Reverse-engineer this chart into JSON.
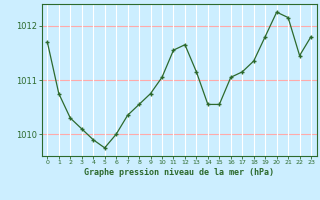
{
  "x": [
    0,
    1,
    2,
    3,
    4,
    5,
    6,
    7,
    8,
    9,
    10,
    11,
    12,
    13,
    14,
    15,
    16,
    17,
    18,
    19,
    20,
    21,
    22,
    23
  ],
  "y": [
    1011.7,
    1010.75,
    1010.3,
    1010.1,
    1009.9,
    1009.75,
    1010.0,
    1010.35,
    1010.55,
    1010.75,
    1011.05,
    1011.55,
    1011.65,
    1011.15,
    1010.55,
    1010.55,
    1011.05,
    1011.15,
    1011.35,
    1011.8,
    1012.25,
    1012.15,
    1011.45,
    1011.8
  ],
  "line_color": "#2d6a2d",
  "marker": "+",
  "marker_size": 3,
  "background_color": "#cceeff",
  "grid_color_h": "#ffaaaa",
  "grid_color_v": "#ffffff",
  "xlabel": "Graphe pression niveau de la mer (hPa)",
  "xlabel_color": "#2d6a2d",
  "tick_color": "#2d6a2d",
  "border_color": "#2d6a2d",
  "ylim": [
    1009.6,
    1012.4
  ],
  "yticks": [
    1010,
    1011,
    1012
  ],
  "xlim": [
    -0.5,
    23.5
  ],
  "xtick_labels": [
    "0",
    "1",
    "2",
    "3",
    "4",
    "5",
    "6",
    "7",
    "8",
    "9",
    "10",
    "11",
    "12",
    "13",
    "14",
    "15",
    "16",
    "17",
    "18",
    "19",
    "20",
    "21",
    "22",
    "23"
  ]
}
